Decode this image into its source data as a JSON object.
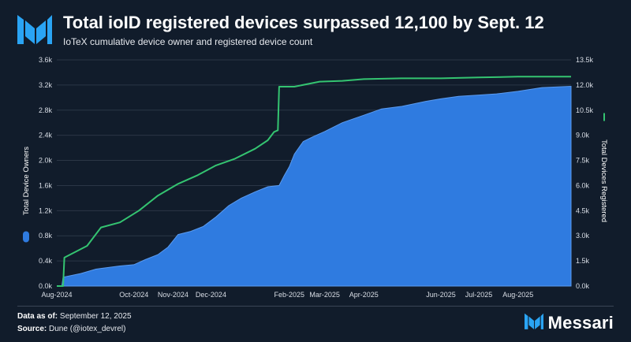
{
  "header": {
    "title": "Total ioID registered devices surpassed 12,100 by Sept. 12",
    "subtitle": "IoTeX cumulative device owner and registered device count"
  },
  "footer": {
    "data_as_of_label": "Data as of:",
    "data_as_of_value": "September 12, 2025",
    "source_label": "Source:",
    "source_value": "Dune (@iotex_devrel)"
  },
  "brand": {
    "name": "Messari"
  },
  "colors": {
    "background": "#111c2b",
    "owners": "#2f7be0",
    "devices": "#34c471",
    "grid": "#2b3646",
    "brand": "#2aa4f4"
  },
  "chart_data": {
    "type": "area",
    "title": "Total ioID registered devices surpassed 12,100 by Sept. 12",
    "x_tick_labels": [
      "Aug-2024",
      "Oct-2024",
      "Nov-2024",
      "Dec-2024",
      "Feb-2025",
      "Mar-2025",
      "Apr-2025",
      "Jun-2025",
      "Jul-2025",
      "Aug-2025"
    ],
    "x_tick_dates": [
      "2024-08-01",
      "2024-10-01",
      "2024-11-01",
      "2024-12-01",
      "2025-02-01",
      "2025-03-01",
      "2025-04-01",
      "2025-06-01",
      "2025-07-01",
      "2025-08-01"
    ],
    "x_range": [
      "2024-08-01",
      "2025-09-12"
    ],
    "y_left": {
      "label": "Total Device Owners",
      "min": 0,
      "max": 3600,
      "ticks": [
        "0.0k",
        "0.4k",
        "0.8k",
        "1.2k",
        "1.6k",
        "2.0k",
        "2.4k",
        "2.8k",
        "3.2k",
        "3.6k"
      ]
    },
    "y_right": {
      "label": "Total Devices Registered",
      "min": 0,
      "max": 13500,
      "ticks": [
        "0.0k",
        "1.5k",
        "3.0k",
        "4.5k",
        "6.0k",
        "7.5k",
        "9.0k",
        "10.5k",
        "12.0k",
        "13.5k"
      ]
    },
    "grid": true,
    "legend": "axis-labels",
    "series": [
      {
        "name": "Total Device Owners",
        "axis": "left",
        "style": "area",
        "x": [
          "2024-08-01",
          "2024-08-05",
          "2024-08-06",
          "2024-08-20",
          "2024-09-01",
          "2024-09-20",
          "2024-10-01",
          "2024-10-10",
          "2024-10-20",
          "2024-10-28",
          "2024-11-05",
          "2024-11-15",
          "2024-11-25",
          "2024-12-05",
          "2024-12-15",
          "2024-12-25",
          "2025-01-05",
          "2025-01-15",
          "2025-01-24",
          "2025-01-28",
          "2025-02-01",
          "2025-02-05",
          "2025-02-12",
          "2025-02-20",
          "2025-03-01",
          "2025-03-15",
          "2025-04-01",
          "2025-04-15",
          "2025-05-01",
          "2025-05-20",
          "2025-06-01",
          "2025-06-15",
          "2025-07-01",
          "2025-07-15",
          "2025-08-01",
          "2025-08-20",
          "2025-09-12"
        ],
        "y": [
          0,
          0,
          140,
          200,
          270,
          320,
          340,
          420,
          500,
          620,
          820,
          870,
          950,
          1100,
          1280,
          1400,
          1500,
          1580,
          1600,
          1760,
          1900,
          2100,
          2300,
          2380,
          2460,
          2600,
          2720,
          2820,
          2860,
          2940,
          2980,
          3020,
          3040,
          3060,
          3100,
          3160,
          3180
        ]
      },
      {
        "name": "Total Devices Registered",
        "axis": "right",
        "style": "line",
        "x": [
          "2024-08-01",
          "2024-08-06",
          "2024-08-07",
          "2024-08-25",
          "2024-09-05",
          "2024-09-20",
          "2024-10-05",
          "2024-10-20",
          "2024-11-05",
          "2024-11-20",
          "2024-12-05",
          "2024-12-20",
          "2025-01-05",
          "2025-01-15",
          "2025-01-20",
          "2025-01-23",
          "2025-01-24",
          "2025-02-05",
          "2025-02-25",
          "2025-03-15",
          "2025-04-01",
          "2025-05-01",
          "2025-06-01",
          "2025-07-01",
          "2025-08-01",
          "2025-09-12"
        ],
        "y": [
          0,
          0,
          1700,
          2400,
          3500,
          3800,
          4500,
          5400,
          6100,
          6600,
          7200,
          7600,
          8200,
          8700,
          9200,
          9300,
          11900,
          11900,
          12200,
          12250,
          12350,
          12400,
          12400,
          12450,
          12500,
          12500
        ]
      }
    ]
  }
}
